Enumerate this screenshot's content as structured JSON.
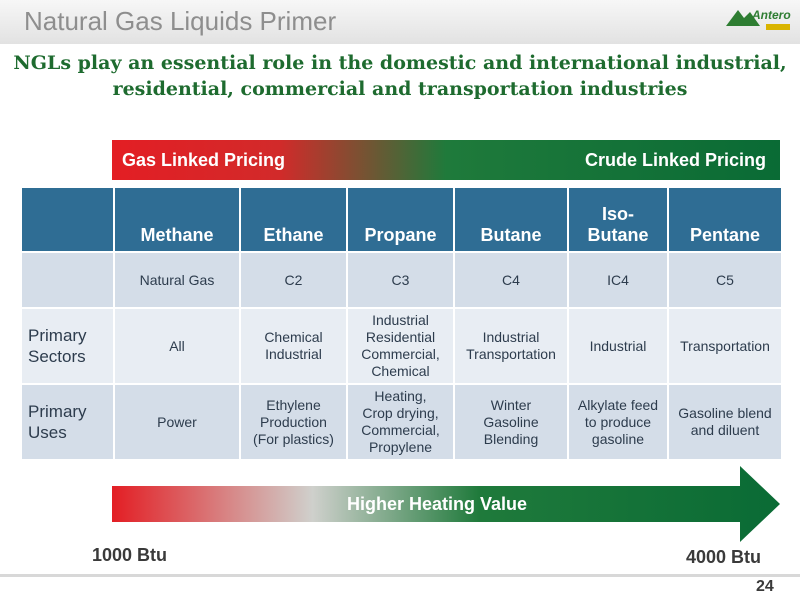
{
  "header": {
    "title": "Natural Gas Liquids Primer",
    "logo_text": "Antero",
    "logo_icon": "mountain-logo-icon"
  },
  "subtitle": {
    "line1": "NGLs play an essential role in the domestic and international industrial,",
    "line2": "residential, commercial and transportation industries"
  },
  "pricing": {
    "left": "Gas Linked Pricing",
    "right": "Crude Linked Pricing"
  },
  "table": {
    "components": [
      "Methane",
      "Ethane",
      "Propane",
      "Butane",
      "Iso-Butane",
      "Pentane"
    ],
    "components_display": [
      [
        "Methane"
      ],
      [
        "Ethane"
      ],
      [
        "Propane"
      ],
      [
        "Butane"
      ],
      [
        "Iso-",
        "Butane"
      ],
      [
        "Pentane"
      ]
    ],
    "codes": [
      "Natural Gas",
      "C2",
      "C3",
      "C4",
      "IC4",
      "C5"
    ],
    "sectors_label": [
      "Primary",
      "Sectors"
    ],
    "sectors": [
      [
        "All"
      ],
      [
        "Chemical",
        "Industrial"
      ],
      [
        "Industrial",
        "Residential",
        "Commercial,",
        "Chemical"
      ],
      [
        "Industrial",
        "Transportation"
      ],
      [
        "Industrial"
      ],
      [
        "Transportation"
      ]
    ],
    "uses_label": [
      "Primary",
      "Uses"
    ],
    "uses": [
      [
        "Power"
      ],
      [
        "Ethylene",
        "Production",
        "(For plastics)"
      ],
      [
        "Heating,",
        "Crop drying,",
        "Commercial,",
        "Propylene"
      ],
      [
        "Winter",
        "Gasoline",
        "Blending"
      ],
      [
        "Alkylate feed",
        "to produce",
        "gasoline"
      ],
      [
        "Gasoline blend",
        "and diluent"
      ]
    ]
  },
  "heating": {
    "label": "Higher Heating Value",
    "left": "1000 Btu",
    "right": "4000 Btu"
  },
  "footer": {
    "page_number": "24"
  },
  "colors": {
    "red": "#e31e24",
    "green": "#0a6b35",
    "table_header": "#2f6d94",
    "subtitle": "#1e6b2f"
  }
}
